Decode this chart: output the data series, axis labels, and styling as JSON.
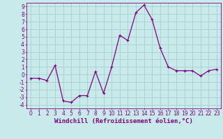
{
  "x": [
    0,
    1,
    2,
    3,
    4,
    5,
    6,
    7,
    8,
    9,
    10,
    11,
    12,
    13,
    14,
    15,
    16,
    17,
    18,
    19,
    20,
    21,
    22,
    23
  ],
  "y": [
    -0.5,
    -0.5,
    -0.8,
    1.2,
    -3.5,
    -3.7,
    -2.8,
    -2.8,
    0.4,
    -2.5,
    1.0,
    5.2,
    4.5,
    8.2,
    9.2,
    7.3,
    3.5,
    1.0,
    0.5,
    0.5,
    0.5,
    -0.2,
    0.5,
    0.7
  ],
  "line_color": "#800080",
  "marker": "+",
  "background_color": "#c8eaea",
  "grid_color": "#a0c8c8",
  "xlabel": "Windchill (Refroidissement éolien,°C)",
  "ylabel": "",
  "xlim": [
    -0.5,
    23.5
  ],
  "ylim": [
    -4.5,
    9.5
  ],
  "xticks": [
    0,
    1,
    2,
    3,
    4,
    5,
    6,
    7,
    8,
    9,
    10,
    11,
    12,
    13,
    14,
    15,
    16,
    17,
    18,
    19,
    20,
    21,
    22,
    23
  ],
  "yticks": [
    -4,
    -3,
    -2,
    -1,
    0,
    1,
    2,
    3,
    4,
    5,
    6,
    7,
    8,
    9
  ],
  "tick_color": "#800080",
  "axis_color": "#800080",
  "xlabel_fontsize": 6.5,
  "tick_fontsize": 5.5,
  "line_width": 0.9,
  "marker_size": 3,
  "marker_ew": 0.8
}
